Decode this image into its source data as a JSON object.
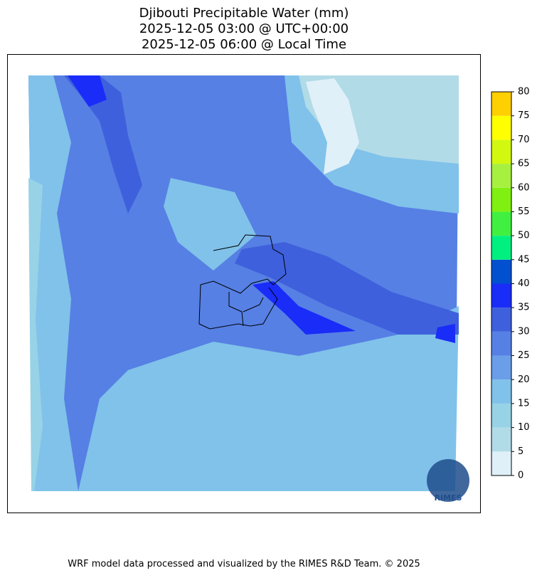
{
  "title": [
    "Djibouti Precipitable Water (mm)",
    "2025-12-05 03:00 @ UTC+00:00",
    "2025-12-05 06:00 @ Local Time"
  ],
  "colorbar": {
    "ticks": [
      0,
      5,
      10,
      15,
      20,
      25,
      30,
      35,
      40,
      45,
      50,
      55,
      60,
      65,
      70,
      75,
      80
    ],
    "colors": [
      "#e0f0f8",
      "#b2dbe8",
      "#98d2e6",
      "#80c2ea",
      "#6a9ee8",
      "#5680e4",
      "#3f60dc",
      "#1a2cf8",
      "#0050d0",
      "#00f080",
      "#40f040",
      "#80f010",
      "#a8f040",
      "#d2f810",
      "#ffff00",
      "#ffd000"
    ]
  },
  "logo_text": "RIMES",
  "footer": "WRF model data processed and visualized by the RIMES R&D Team. © 2025"
}
